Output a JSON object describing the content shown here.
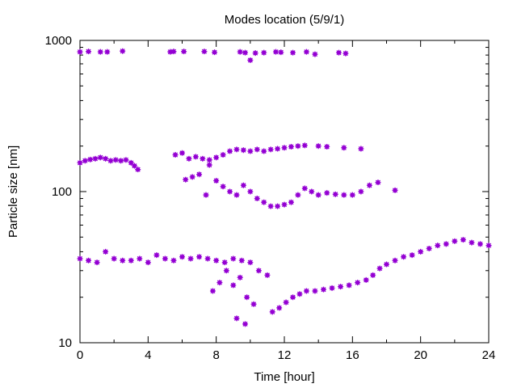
{
  "chart_data": {
    "type": "scatter",
    "title": "Modes location (5/9/1)",
    "xlabel": "Time [hour]",
    "ylabel": "Particle size [nm]",
    "xlim": [
      0,
      24
    ],
    "ylim": [
      10,
      1000
    ],
    "yscale": "log",
    "xticks": [
      0,
      4,
      8,
      12,
      16,
      20,
      24
    ],
    "yticks": [
      10,
      100,
      1000
    ],
    "grid": false,
    "legend": "none",
    "marker_color": "#9400D3",
    "series": [
      {
        "points": [
          [
            0.0,
            840
          ],
          [
            0.5,
            845
          ],
          [
            1.2,
            840
          ],
          [
            1.6,
            840
          ],
          [
            2.5,
            850
          ],
          [
            5.3,
            840
          ],
          [
            5.5,
            845
          ],
          [
            6.1,
            845
          ],
          [
            7.3,
            845
          ],
          [
            7.9,
            835
          ],
          [
            9.4,
            840
          ],
          [
            9.7,
            830
          ],
          [
            10.0,
            740
          ],
          [
            10.3,
            825
          ],
          [
            10.8,
            830
          ],
          [
            11.5,
            840
          ],
          [
            11.8,
            835
          ],
          [
            12.5,
            830
          ],
          [
            13.3,
            840
          ],
          [
            13.8,
            810
          ],
          [
            15.2,
            830
          ],
          [
            15.6,
            820
          ],
          [
            0.0,
            155
          ],
          [
            0.3,
            160
          ],
          [
            0.6,
            163
          ],
          [
            0.9,
            165
          ],
          [
            1.2,
            168
          ],
          [
            1.5,
            165
          ],
          [
            1.8,
            160
          ],
          [
            2.1,
            162
          ],
          [
            2.4,
            160
          ],
          [
            2.7,
            162
          ],
          [
            3.0,
            155
          ],
          [
            3.2,
            148
          ],
          [
            3.4,
            140
          ],
          [
            5.6,
            175
          ],
          [
            6.0,
            180
          ],
          [
            6.4,
            165
          ],
          [
            6.8,
            170
          ],
          [
            7.2,
            165
          ],
          [
            7.6,
            162
          ],
          [
            8.0,
            168
          ],
          [
            8.4,
            175
          ],
          [
            8.8,
            185
          ],
          [
            9.2,
            190
          ],
          [
            9.6,
            188
          ],
          [
            10.0,
            185
          ],
          [
            10.4,
            190
          ],
          [
            10.8,
            185
          ],
          [
            11.2,
            190
          ],
          [
            11.6,
            192
          ],
          [
            12.0,
            195
          ],
          [
            12.4,
            198
          ],
          [
            12.8,
            200
          ],
          [
            13.2,
            202
          ],
          [
            14.0,
            200
          ],
          [
            14.5,
            198
          ],
          [
            15.5,
            195
          ],
          [
            16.5,
            192
          ],
          [
            6.2,
            120
          ],
          [
            6.6,
            125
          ],
          [
            7.0,
            130
          ],
          [
            7.4,
            95
          ],
          [
            7.6,
            150
          ],
          [
            8.0,
            118
          ],
          [
            8.4,
            108
          ],
          [
            8.8,
            100
          ],
          [
            9.2,
            95
          ],
          [
            9.6,
            110
          ],
          [
            10.0,
            100
          ],
          [
            10.4,
            90
          ],
          [
            10.8,
            85
          ],
          [
            11.2,
            80
          ],
          [
            11.6,
            80
          ],
          [
            12.0,
            82
          ],
          [
            12.4,
            85
          ],
          [
            12.8,
            95
          ],
          [
            13.2,
            105
          ],
          [
            13.6,
            100
          ],
          [
            14.0,
            95
          ],
          [
            14.5,
            98
          ],
          [
            15.0,
            96
          ],
          [
            15.5,
            95
          ],
          [
            16.0,
            95
          ],
          [
            16.5,
            100
          ],
          [
            17.0,
            110
          ],
          [
            17.5,
            115
          ],
          [
            18.5,
            102
          ],
          [
            0.0,
            36
          ],
          [
            0.5,
            35
          ],
          [
            1.0,
            34
          ],
          [
            1.5,
            40
          ],
          [
            2.0,
            36
          ],
          [
            2.5,
            35
          ],
          [
            3.0,
            35
          ],
          [
            3.5,
            36
          ],
          [
            4.0,
            34
          ],
          [
            4.5,
            38
          ],
          [
            5.0,
            36
          ],
          [
            5.5,
            35
          ],
          [
            6.0,
            37
          ],
          [
            6.5,
            36
          ],
          [
            7.0,
            37
          ],
          [
            7.5,
            36
          ],
          [
            8.0,
            35
          ],
          [
            8.5,
            34
          ],
          [
            9.0,
            36
          ],
          [
            9.5,
            35
          ],
          [
            10.0,
            34
          ],
          [
            10.5,
            30
          ],
          [
            11.0,
            28
          ],
          [
            7.8,
            22
          ],
          [
            8.2,
            25
          ],
          [
            8.6,
            30
          ],
          [
            9.0,
            24
          ],
          [
            9.4,
            27
          ],
          [
            9.8,
            20
          ],
          [
            10.2,
            18
          ],
          [
            9.2,
            14.5
          ],
          [
            9.7,
            13.3
          ],
          [
            11.3,
            16
          ],
          [
            11.7,
            17
          ],
          [
            12.1,
            18.5
          ],
          [
            12.5,
            20
          ],
          [
            12.9,
            21
          ],
          [
            13.3,
            22
          ],
          [
            13.8,
            22
          ],
          [
            14.3,
            22.5
          ],
          [
            14.8,
            23
          ],
          [
            15.3,
            23.5
          ],
          [
            15.8,
            24
          ],
          [
            16.3,
            25
          ],
          [
            16.8,
            26
          ],
          [
            17.2,
            28
          ],
          [
            17.6,
            31
          ],
          [
            18.0,
            33
          ],
          [
            18.5,
            35
          ],
          [
            19.0,
            37
          ],
          [
            19.5,
            38
          ],
          [
            20.0,
            40
          ],
          [
            20.5,
            42
          ],
          [
            21.0,
            44
          ],
          [
            21.5,
            45
          ],
          [
            22.0,
            47
          ],
          [
            22.5,
            48
          ],
          [
            23.0,
            46
          ],
          [
            23.5,
            45
          ],
          [
            24.0,
            44
          ]
        ]
      }
    ]
  }
}
